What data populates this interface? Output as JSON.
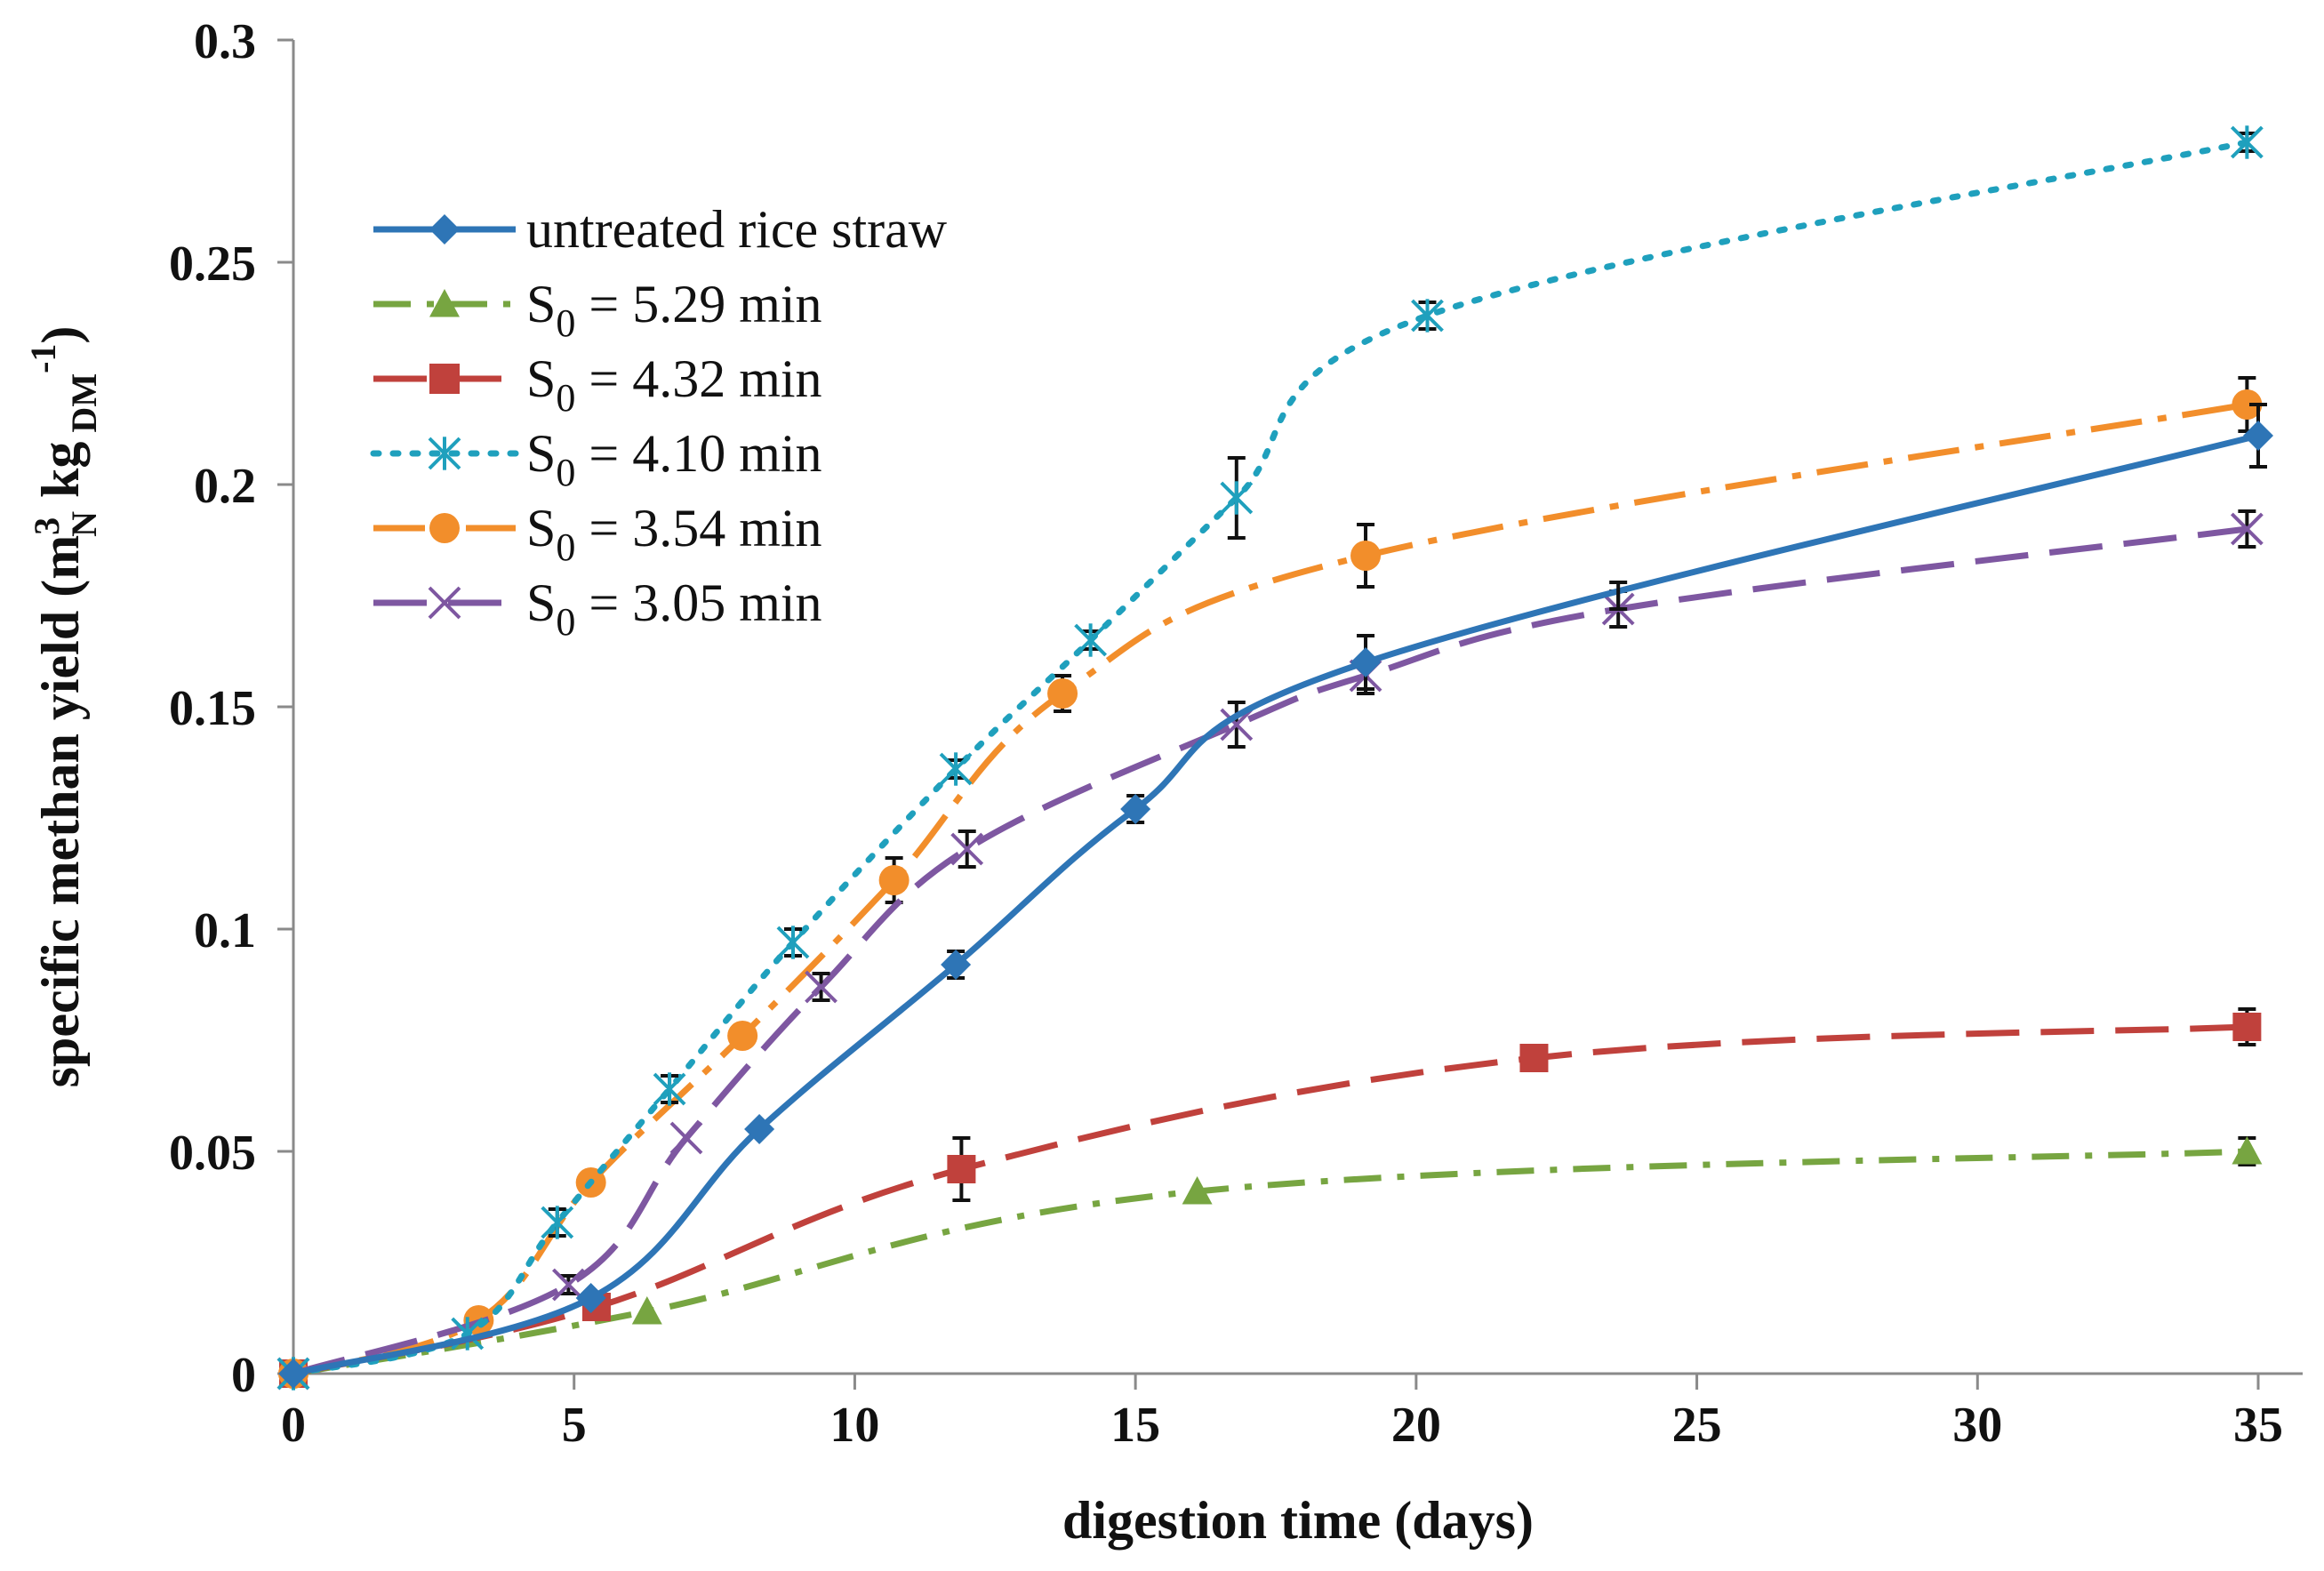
{
  "chart_data": {
    "type": "line",
    "title": "",
    "xlabel": "digestion time (days)",
    "ylabel": {
      "prefix": "specific methan yield (m",
      "sup1": "3",
      "sub1": "N",
      "mid": " kg",
      "sub2": " DM",
      "sup2": "-1",
      "suffix": ")"
    },
    "xlim": [
      0,
      35
    ],
    "ylim": [
      0,
      0.3
    ],
    "xticks": [
      "0",
      "5",
      "10",
      "15",
      "20",
      "25",
      "30",
      "35"
    ],
    "yticks": [
      "0",
      "0.05",
      "0.1",
      "0.15",
      "0.2",
      "0.25",
      "0.3"
    ],
    "grid": false,
    "legend_position": "upper-left",
    "series": [
      {
        "name": "untreated rice straw",
        "label_parts": {
          "main": "untreated rice straw"
        },
        "color": "#2E75B6",
        "dash": "solid",
        "marker": "diamond",
        "x": [
          0,
          5.3,
          8.3,
          11.8,
          15,
          19.1,
          35
        ],
        "y": [
          0,
          0.017,
          0.055,
          0.092,
          0.127,
          0.16,
          0.211
        ],
        "err": [
          0,
          0,
          0,
          0.003,
          0.003,
          0.006,
          0.007
        ],
        "extra_err": [
          {
            "x": 23.6,
            "y": 0.175,
            "e": 0.003
          }
        ]
      },
      {
        "name": "S0 = 5.29 min",
        "label_parts": {
          "main": "S",
          "sub": "0",
          "rest": " = 5.29 min"
        },
        "color": "#77A541",
        "dash": "dashdot",
        "marker": "triangle",
        "x": [
          0,
          6.3,
          16.1,
          34.8
        ],
        "y": [
          0,
          0.014,
          0.041,
          0.05
        ],
        "err": [
          0,
          0,
          0,
          0.003
        ]
      },
      {
        "name": "S0 = 4.32 min",
        "label_parts": {
          "main": "S",
          "sub": "0",
          "rest": " = 4.32 min"
        },
        "color": "#C0413C",
        "dash": "longdash",
        "marker": "square",
        "x": [
          0,
          5.4,
          11.9,
          22.1,
          34.8
        ],
        "y": [
          0,
          0.015,
          0.046,
          0.071,
          0.078
        ],
        "err": [
          0,
          0,
          0.007,
          0,
          0.004
        ]
      },
      {
        "name": "S0 = 4.10 min",
        "label_parts": {
          "main": "S",
          "sub": "0",
          "rest": " = 4.10 min"
        },
        "color": "#1FA0BD",
        "dash": "dotted",
        "marker": "star",
        "x": [
          0,
          3.1,
          4.7,
          6.7,
          8.9,
          11.8,
          14.2,
          16.8,
          20.2,
          34.8
        ],
        "y": [
          0,
          0.009,
          0.034,
          0.064,
          0.097,
          0.136,
          0.165,
          0.197,
          0.238,
          0.277
        ],
        "err": [
          0,
          0,
          0.003,
          0.003,
          0.003,
          0.002,
          0.002,
          0.009,
          0.003,
          0.002
        ]
      },
      {
        "name": "S0 = 3.54 min",
        "label_parts": {
          "main": "S",
          "sub": "0",
          "rest": " = 3.54 min"
        },
        "color": "#F28E2B",
        "dash": "dashdot-long",
        "marker": "circle",
        "x": [
          0,
          3.3,
          5.3,
          8,
          10.7,
          13.7,
          19.1,
          34.8
        ],
        "y": [
          0,
          0.012,
          0.043,
          0.076,
          0.111,
          0.153,
          0.184,
          0.218
        ],
        "err": [
          0,
          0,
          0,
          0,
          0.005,
          0.004,
          0.007,
          0.006
        ]
      },
      {
        "name": "S0 = 3.05 min",
        "label_parts": {
          "main": "S",
          "sub": "0",
          "rest": " = 3.05 min"
        },
        "color": "#7E57A1",
        "dash": "longdash",
        "marker": "x",
        "x": [
          0,
          4.9,
          7,
          9.4,
          12,
          16.8,
          19.1,
          23.6,
          34.8
        ],
        "y": [
          0,
          0.02,
          0.053,
          0.087,
          0.118,
          0.146,
          0.157,
          0.172,
          0.19
        ],
        "err": [
          0,
          0.002,
          0,
          0.003,
          0.004,
          0.005,
          0.004,
          0.004,
          0.004
        ]
      }
    ]
  }
}
